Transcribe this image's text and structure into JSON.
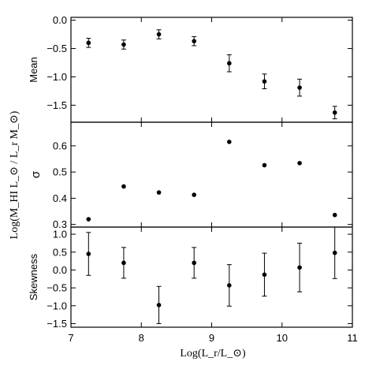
{
  "chart_data": {
    "type": "scatter",
    "layout": "three vertically stacked panels sharing x-axis",
    "xlabel": "Log(L_r/L_⊙)",
    "ylabel": "Log(M_HI L_⊙ / L_r M_⊙)",
    "xlim": [
      7,
      11
    ],
    "x_ticks": [
      7,
      8,
      9,
      10,
      11
    ],
    "x": [
      7.25,
      7.75,
      8.25,
      8.75,
      9.25,
      9.75,
      10.25,
      10.75
    ],
    "panels": [
      {
        "id": "mean",
        "ylabel": "Mean",
        "ylim": [
          -1.8,
          0.05
        ],
        "y_ticks": [
          0.0,
          -0.5,
          -1.0,
          -1.5
        ],
        "y_tick_labels": [
          "0.0",
          "−0.5",
          "−1.0",
          "−1.5"
        ],
        "values": [
          -0.4,
          -0.43,
          -0.25,
          -0.37,
          -0.76,
          -1.08,
          -1.19,
          -1.63
        ],
        "errors": [
          0.08,
          0.08,
          0.08,
          0.08,
          0.15,
          0.13,
          0.15,
          0.11
        ],
        "has_errorbars": true
      },
      {
        "id": "sigma",
        "ylabel": "σ",
        "ylim": [
          0.29,
          0.69
        ],
        "y_ticks": [
          0.3,
          0.4,
          0.5,
          0.6
        ],
        "y_tick_labels": [
          "0.3",
          "0.4",
          "0.5",
          "0.6"
        ],
        "values": [
          0.32,
          0.445,
          0.422,
          0.413,
          0.615,
          0.526,
          0.534,
          0.336
        ],
        "has_errorbars": false
      },
      {
        "id": "skewness",
        "ylabel": "Skewness",
        "ylim": [
          -1.6,
          1.2
        ],
        "y_ticks": [
          1.0,
          0.5,
          0.0,
          -0.5,
          -1.0,
          -1.5
        ],
        "y_tick_labels": [
          "1.0",
          "0.5",
          "0.0",
          "−0.5",
          "−1.0",
          "−1.5"
        ],
        "values": [
          0.45,
          0.2,
          -0.98,
          0.2,
          -0.43,
          -0.13,
          0.07,
          0.48
        ],
        "errors": [
          0.6,
          0.43,
          0.52,
          0.43,
          0.58,
          0.6,
          0.68,
          0.72
        ],
        "has_errorbars": true
      }
    ],
    "grid": false,
    "marker": "filled circle",
    "marker_color": "#000000"
  }
}
